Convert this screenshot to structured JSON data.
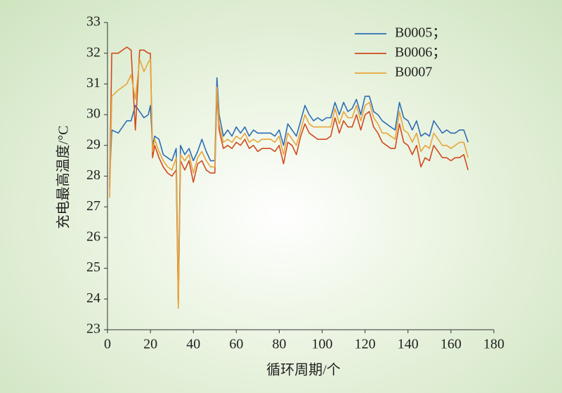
{
  "chart_data": {
    "type": "line",
    "xlabel": "循环周期/个",
    "ylabel": "充电最高温度/°C",
    "xlim": [
      0,
      180
    ],
    "xticks": [
      0,
      20,
      40,
      60,
      80,
      100,
      120,
      140,
      160,
      180
    ],
    "ylim": [
      23,
      33
    ],
    "yticks": [
      23,
      24,
      25,
      26,
      27,
      28,
      29,
      30,
      31,
      32,
      33
    ],
    "legend": "upper-right",
    "x": [
      1,
      2,
      5,
      9,
      11,
      13,
      15,
      17,
      19,
      20,
      21,
      22,
      24,
      26,
      28,
      30,
      32,
      33,
      34,
      36,
      38,
      40,
      42,
      44,
      46,
      48,
      50,
      51,
      52,
      54,
      56,
      58,
      60,
      62,
      64,
      66,
      68,
      70,
      72,
      74,
      76,
      78,
      80,
      82,
      84,
      86,
      88,
      90,
      92,
      94,
      96,
      98,
      100,
      102,
      104,
      106,
      108,
      110,
      112,
      114,
      116,
      118,
      120,
      122,
      124,
      126,
      128,
      130,
      132,
      134,
      136,
      138,
      140,
      142,
      144,
      146,
      148,
      150,
      152,
      154,
      156,
      158,
      160,
      162,
      164,
      166,
      168
    ],
    "series": [
      {
        "name": "B0005；",
        "color": "#2e6db4",
        "values": [
          27.9,
          29.5,
          29.4,
          29.8,
          29.8,
          30.3,
          30.1,
          29.9,
          30.0,
          30.3,
          29.0,
          29.3,
          29.2,
          28.7,
          28.6,
          28.5,
          28.9,
          23.9,
          29.0,
          28.7,
          28.9,
          28.5,
          28.8,
          29.2,
          28.8,
          28.5,
          28.5,
          31.2,
          30.0,
          29.3,
          29.5,
          29.3,
          29.6,
          29.4,
          29.6,
          29.3,
          29.5,
          29.4,
          29.4,
          29.4,
          29.4,
          29.3,
          29.5,
          29.0,
          29.7,
          29.5,
          29.3,
          29.8,
          30.3,
          30.0,
          29.8,
          29.9,
          29.8,
          29.9,
          29.9,
          30.4,
          30.0,
          30.4,
          30.1,
          30.2,
          30.5,
          30.0,
          30.6,
          30.6,
          30.1,
          30.0,
          29.8,
          29.7,
          29.6,
          29.5,
          30.4,
          29.9,
          29.8,
          29.5,
          29.8,
          29.3,
          29.4,
          29.3,
          29.8,
          29.6,
          29.4,
          29.5,
          29.4,
          29.4,
          29.5,
          29.5,
          29.1
        ]
      },
      {
        "name": "B0006；",
        "color": "#d04a1e",
        "values": [
          27.6,
          32.0,
          32.0,
          32.2,
          32.1,
          29.5,
          32.1,
          32.1,
          32.0,
          32.0,
          28.6,
          29.0,
          28.6,
          28.3,
          28.1,
          28.0,
          28.2,
          23.8,
          28.5,
          28.2,
          28.5,
          27.8,
          28.4,
          28.5,
          28.2,
          28.1,
          28.1,
          30.7,
          29.5,
          28.9,
          29.0,
          28.9,
          29.1,
          29.0,
          29.2,
          28.9,
          29.0,
          28.8,
          28.9,
          28.9,
          28.9,
          28.8,
          29.0,
          28.4,
          29.1,
          29.0,
          28.7,
          29.3,
          29.7,
          29.4,
          29.3,
          29.2,
          29.2,
          29.2,
          29.3,
          29.9,
          29.4,
          29.8,
          29.6,
          29.6,
          30.0,
          29.5,
          30.0,
          30.1,
          29.6,
          29.4,
          29.1,
          29.0,
          28.9,
          28.9,
          29.7,
          29.1,
          29.0,
          28.7,
          29.0,
          28.3,
          28.6,
          28.5,
          29.0,
          28.8,
          28.6,
          28.6,
          28.5,
          28.6,
          28.6,
          28.7,
          28.2
        ]
      },
      {
        "name": "B0007",
        "color": "#e8a43a",
        "values": [
          27.3,
          30.6,
          30.8,
          31.0,
          31.3,
          30.5,
          31.8,
          31.4,
          31.7,
          31.8,
          28.8,
          29.2,
          28.8,
          28.5,
          28.3,
          28.2,
          28.6,
          23.7,
          28.7,
          28.5,
          28.7,
          28.1,
          28.6,
          28.8,
          28.5,
          28.3,
          28.3,
          30.9,
          29.7,
          29.1,
          29.2,
          29.1,
          29.3,
          29.2,
          29.4,
          29.1,
          29.2,
          29.1,
          29.2,
          29.2,
          29.2,
          29.1,
          29.3,
          28.7,
          29.4,
          29.2,
          29.0,
          29.5,
          30.0,
          29.7,
          29.6,
          29.6,
          29.6,
          29.6,
          29.6,
          30.2,
          29.7,
          30.1,
          29.9,
          29.9,
          30.3,
          29.8,
          30.3,
          30.4,
          29.9,
          29.7,
          29.4,
          29.4,
          29.3,
          29.2,
          30.1,
          29.5,
          29.4,
          29.1,
          29.4,
          28.8,
          29.0,
          28.9,
          29.4,
          29.2,
          29.0,
          29.0,
          28.9,
          29.0,
          29.1,
          29.1,
          28.6
        ]
      }
    ]
  }
}
